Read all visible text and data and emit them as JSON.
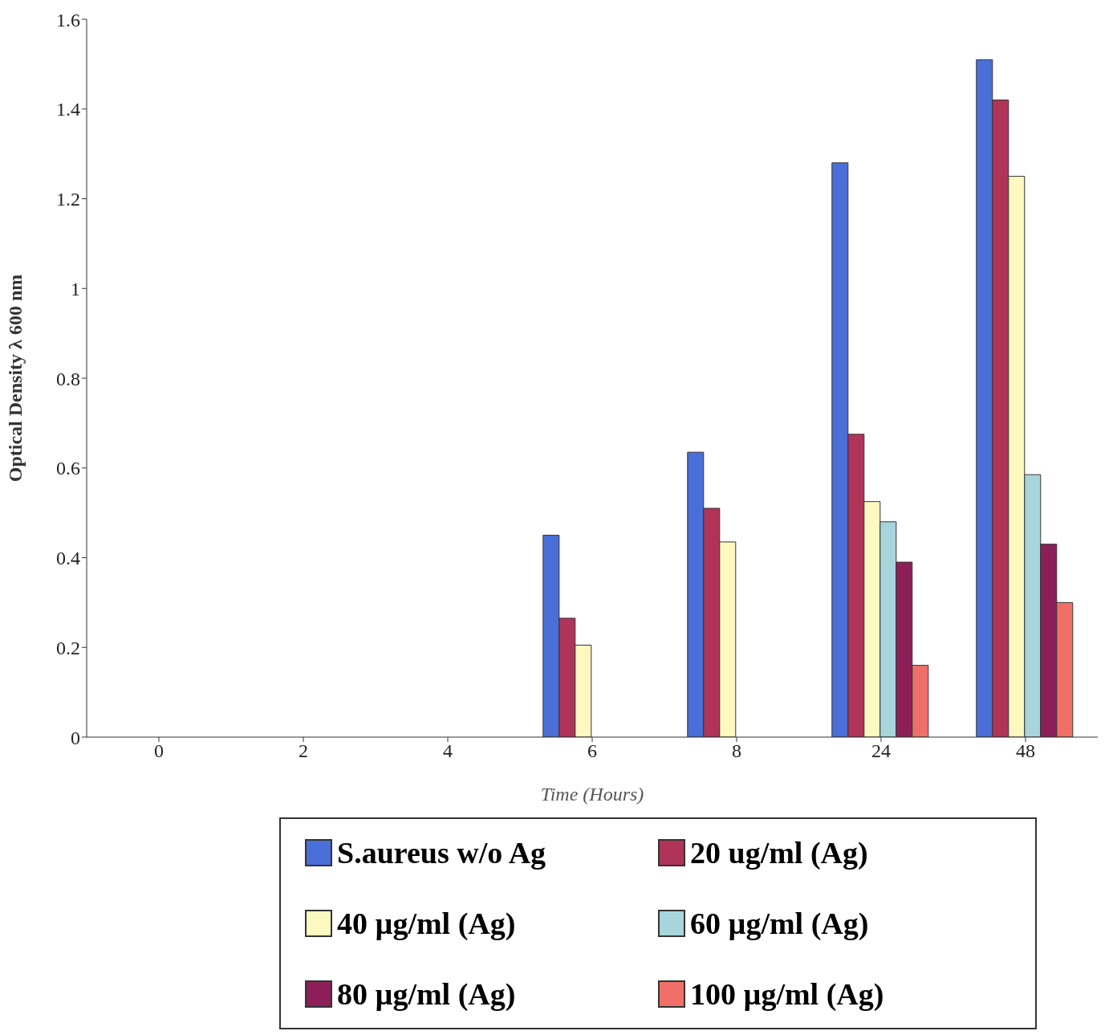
{
  "chart_data": {
    "type": "bar",
    "xlabel": "Time (Hours)",
    "ylabel": "Optical Density λ 600 nm",
    "categories": [
      "0",
      "2",
      "4",
      "6",
      "8",
      "24",
      "48"
    ],
    "series": [
      {
        "name": "S.aureus w/o Ag",
        "color": "#4a6fd8",
        "values": [
          0,
          0,
          0,
          0.45,
          0.635,
          1.28,
          1.51
        ]
      },
      {
        "name": "20 ug/ml (Ag)",
        "color": "#b0345a",
        "values": [
          0,
          0,
          0,
          0.265,
          0.51,
          0.675,
          1.42
        ]
      },
      {
        "name": "40 µg/ml (Ag)",
        "color": "#fcf8c0",
        "values": [
          0,
          0,
          0,
          0.205,
          0.435,
          0.525,
          1.25
        ]
      },
      {
        "name": "60 µg/ml (Ag)",
        "color": "#a8d4dc",
        "values": [
          0,
          0,
          0,
          0,
          0,
          0.48,
          0.585
        ]
      },
      {
        "name": "80 µg/ml (Ag)",
        "color": "#8c1f5a",
        "values": [
          0,
          0,
          0,
          0,
          0,
          0.39,
          0.43
        ]
      },
      {
        "name": "100 µg/ml (Ag)",
        "color": "#f07068",
        "values": [
          0,
          0,
          0,
          0,
          0,
          0.16,
          0.3
        ]
      }
    ],
    "ylim": [
      0,
      1.6
    ],
    "yticks": [
      0,
      0.2,
      0.4,
      0.6,
      0.8,
      1,
      1.2,
      1.4,
      1.6
    ],
    "grid": false,
    "legend": "bottom"
  }
}
